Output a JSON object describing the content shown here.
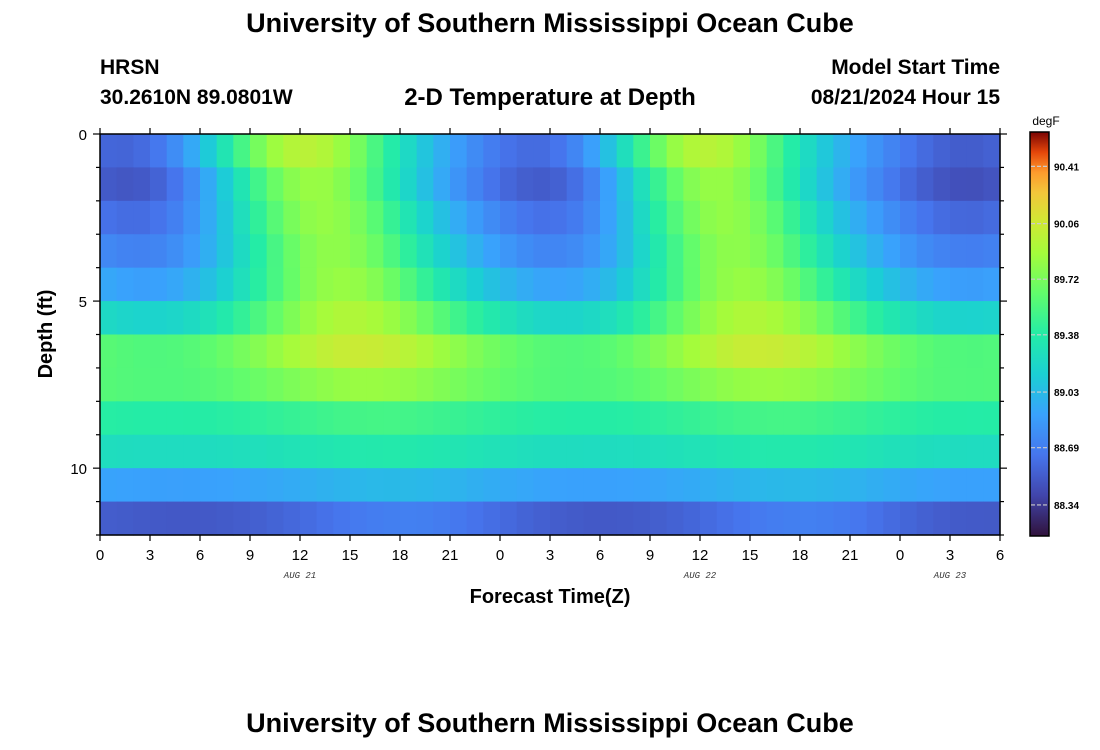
{
  "page": {
    "title": "University of Southern Mississippi Ocean Cube",
    "bottom_title": "University of Southern Mississippi Ocean Cube",
    "station": "HRSN",
    "coords": "30.2610N  89.0801W",
    "plot_title": "2-D Temperature at Depth",
    "model_start_label": "Model Start Time",
    "model_start_value": "08/21/2024 Hour 15"
  },
  "chart_data": {
    "type": "heatmap",
    "title": "2-D Temperature at Depth",
    "xlabel": "Forecast Time(Z)",
    "ylabel": "Depth (ft)",
    "x_hours_from_aug21_00z": [
      0,
      54
    ],
    "x_tick_labels": [
      "0",
      "3",
      "6",
      "9",
      "12",
      "15",
      "18",
      "21",
      "0",
      "3",
      "6",
      "9",
      "12",
      "15",
      "18",
      "21",
      "0",
      "3",
      "6"
    ],
    "date_labels": [
      "AUG 21",
      "AUG 22",
      "AUG 23"
    ],
    "date_label_hours": [
      12,
      36,
      51
    ],
    "y_ticks": [
      0,
      5,
      10
    ],
    "ylim": [
      0,
      12
    ],
    "color_unit": "degF",
    "colorbar_ticks": [
      "90.41",
      "90.06",
      "89.72",
      "89.38",
      "89.03",
      "88.69",
      "88.34"
    ],
    "colorbar_range": [
      88.15,
      90.62
    ],
    "depth_layers_ft": [
      0.5,
      1.5,
      2.5,
      3.5,
      4.5,
      5.5,
      6.5,
      7.5,
      8.5,
      9.5,
      10.5,
      11.5
    ],
    "base_temp_by_layer": [
      89.25,
      89.15,
      89.2,
      89.25,
      89.35,
      89.55,
      89.8,
      89.7,
      89.45,
      89.3,
      88.95,
      88.6
    ],
    "diurnal_amplitude_by_layer": [
      1.05,
      1.0,
      0.9,
      0.8,
      0.7,
      0.55,
      0.35,
      0.2,
      0.1,
      0.08,
      0.1,
      0.15
    ],
    "peak_hours": [
      12,
      36
    ],
    "phase_lag_hours_per_ft": 0.55
  }
}
